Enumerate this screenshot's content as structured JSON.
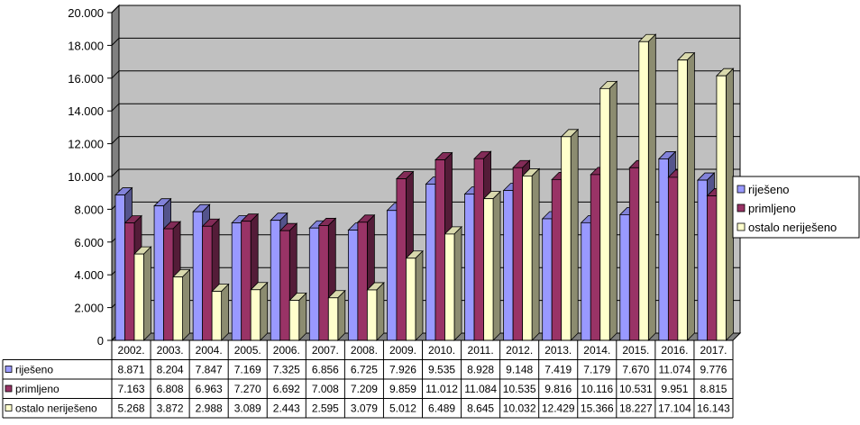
{
  "chart_data": {
    "type": "bar",
    "title": "",
    "xlabel": "",
    "ylabel": "",
    "ylim": [
      0,
      20000
    ],
    "ytick_labels": [
      "0",
      "2.000",
      "4.000",
      "6.000",
      "8.000",
      "10.000",
      "12.000",
      "14.000",
      "16.000",
      "18.000",
      "20.000"
    ],
    "grid": true,
    "legend_position": "right",
    "categories": [
      "2002.",
      "2003.",
      "2004.",
      "2005.",
      "2006.",
      "2007.",
      "2008.",
      "2009.",
      "2010.",
      "2011.",
      "2012.",
      "2013.",
      "2014.",
      "2015.",
      "2016.",
      "2017."
    ],
    "series": [
      {
        "name": "riješeno",
        "color": "#9999ff",
        "values": [
          8871,
          8204,
          7847,
          7169,
          7325,
          6856,
          6725,
          7926,
          9535,
          8928,
          9148,
          7419,
          7179,
          7670,
          11074,
          9776
        ],
        "labels": [
          "8.871",
          "8.204",
          "7.847",
          "7.169",
          "7.325",
          "6.856",
          "6.725",
          "7.926",
          "9.535",
          "8.928",
          "9.148",
          "7.419",
          "7.179",
          "7.670",
          "11.074",
          "9.776"
        ]
      },
      {
        "name": "primljeno",
        "color": "#993366",
        "values": [
          7163,
          6808,
          6963,
          7270,
          6692,
          7008,
          7209,
          9859,
          11012,
          11084,
          10535,
          9816,
          10116,
          10531,
          9951,
          8815
        ],
        "labels": [
          "7.163",
          "6.808",
          "6.963",
          "7.270",
          "6.692",
          "7.008",
          "7.209",
          "9.859",
          "11.012",
          "11.084",
          "10.535",
          "9.816",
          "10.116",
          "10.531",
          "9.951",
          "8.815"
        ]
      },
      {
        "name": "ostalo neriješeno",
        "color": "#ffffcc",
        "values": [
          5268,
          3872,
          2988,
          3089,
          2443,
          2595,
          3079,
          5012,
          6489,
          8645,
          10032,
          12429,
          15366,
          18227,
          17104,
          16143
        ],
        "labels": [
          "5.268",
          "3.872",
          "2.988",
          "3.089",
          "2.443",
          "2.595",
          "3.079",
          "5.012",
          "6.489",
          "8.645",
          "10.032",
          "12.429",
          "15.366",
          "18.227",
          "17.104",
          "16.143"
        ]
      }
    ],
    "plot_background": "#c0c0c0"
  }
}
